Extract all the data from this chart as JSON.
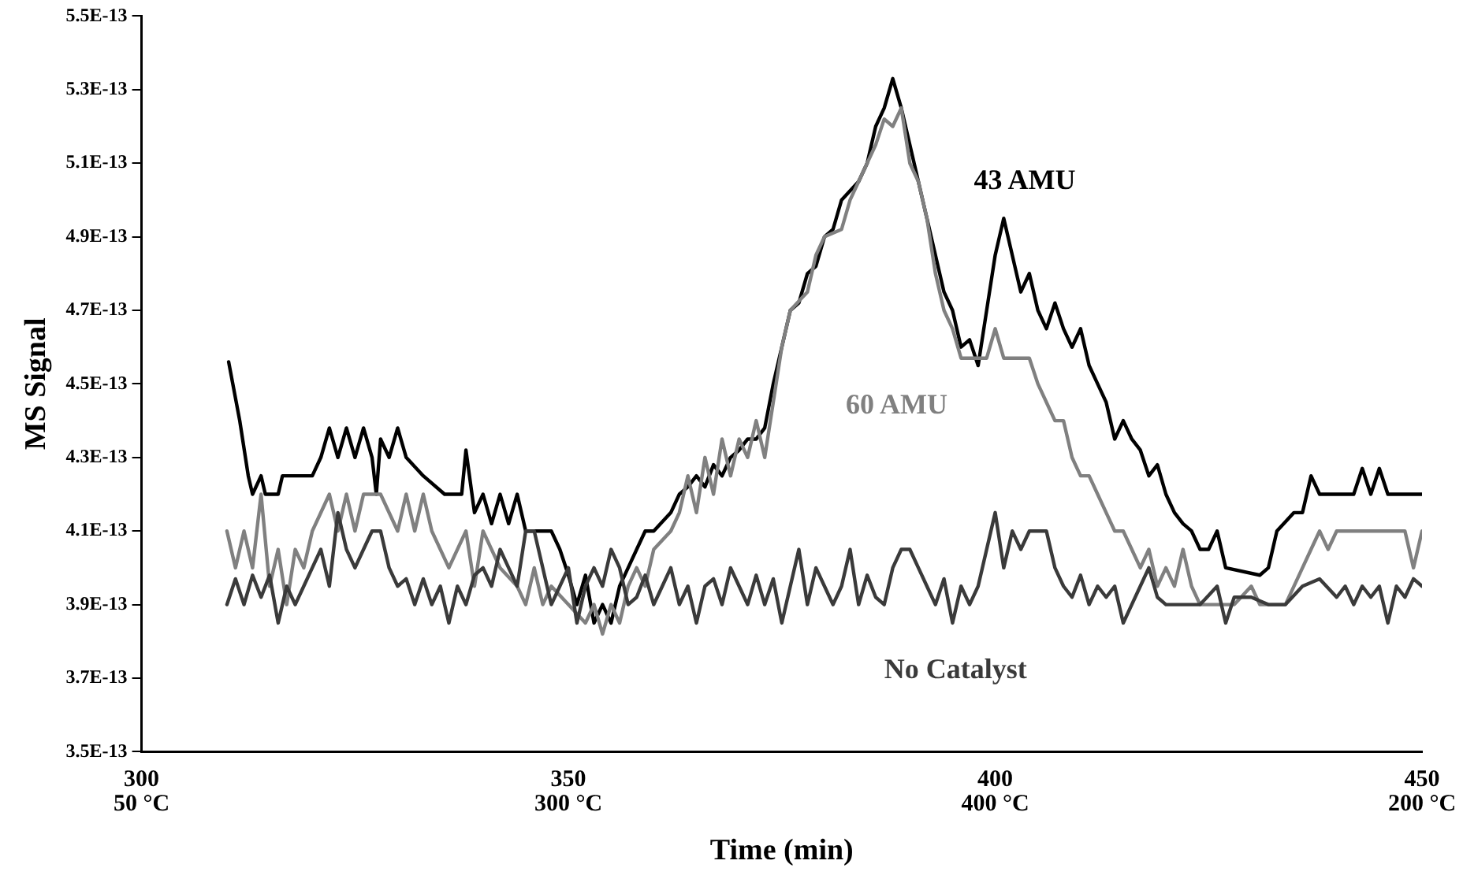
{
  "chart_data": {
    "type": "line",
    "xlabel": "Time (min)",
    "ylabel": "MS Signal",
    "marker": "none",
    "legend": false,
    "grid": false,
    "xlim": [
      300,
      450
    ],
    "xticks": [
      300,
      350,
      400,
      450
    ],
    "annotations": [
      "50 °C",
      "300 °C",
      "400 °C",
      "200 °C"
    ],
    "ylim": [
      3.5e-13,
      5.5e-13
    ],
    "yticks": [
      {
        "value": 3.5e-13,
        "label": "3.5E-13"
      },
      {
        "value": 3.7e-13,
        "label": "3.7E-13"
      },
      {
        "value": 3.9e-13,
        "label": "3.9E-13"
      },
      {
        "value": 4.1e-13,
        "label": "4.1E-13"
      },
      {
        "value": 4.3e-13,
        "label": "4.3E-13"
      },
      {
        "value": 4.5e-13,
        "label": "4.5E-13"
      },
      {
        "value": 4.7e-13,
        "label": "4.7E-13"
      },
      {
        "value": 4.9e-13,
        "label": "4.9E-13"
      },
      {
        "value": 5.1e-13,
        "label": "5.1E-13"
      },
      {
        "value": 5.3e-13,
        "label": "5.3E-13"
      },
      {
        "value": 5.5e-13,
        "label": "5.5E-13"
      }
    ],
    "series": [
      {
        "name": "No Catalyst",
        "color": "#3a3a3a",
        "x": [
          310,
          311,
          312,
          313,
          314,
          315,
          316,
          317,
          318,
          319,
          320,
          321,
          322,
          323,
          324,
          325,
          326,
          327,
          328,
          329,
          330,
          331,
          332,
          333,
          334,
          335,
          336,
          337,
          338,
          339,
          340,
          341,
          342,
          343,
          344,
          345,
          346,
          347,
          348,
          349,
          350,
          351,
          352,
          353,
          354,
          355,
          356,
          357,
          358,
          359,
          360,
          361,
          362,
          363,
          364,
          365,
          366,
          367,
          368,
          369,
          370,
          371,
          372,
          373,
          374,
          375,
          376,
          377,
          378,
          379,
          380,
          381,
          382,
          383,
          384,
          385,
          386,
          387,
          388,
          389,
          390,
          391,
          392,
          393,
          394,
          395,
          396,
          397,
          398,
          399,
          400,
          401,
          402,
          403,
          404,
          405,
          406,
          407,
          408,
          409,
          410,
          411,
          412,
          413,
          414,
          415,
          416,
          417,
          418,
          419,
          420,
          422,
          424,
          426,
          427,
          428,
          430,
          432,
          434,
          436,
          438,
          440,
          441,
          442,
          443,
          444,
          445,
          446,
          447,
          448,
          449,
          450
        ],
        "values": [
          3.9e-13,
          3.97e-13,
          3.9e-13,
          3.98e-13,
          3.92e-13,
          3.98e-13,
          3.85e-13,
          3.95e-13,
          3.9e-13,
          3.95e-13,
          4e-13,
          4.05e-13,
          3.95e-13,
          4.15e-13,
          4.05e-13,
          4e-13,
          4.05e-13,
          4.1e-13,
          4.1e-13,
          4e-13,
          3.95e-13,
          3.97e-13,
          3.9e-13,
          3.97e-13,
          3.9e-13,
          3.95e-13,
          3.85e-13,
          3.95e-13,
          3.9e-13,
          3.98e-13,
          4e-13,
          3.95e-13,
          4.05e-13,
          4e-13,
          3.95e-13,
          4.1e-13,
          4.1e-13,
          4e-13,
          3.9e-13,
          3.95e-13,
          4e-13,
          3.85e-13,
          3.95e-13,
          4e-13,
          3.95e-13,
          4.05e-13,
          4e-13,
          3.9e-13,
          3.92e-13,
          3.98e-13,
          3.9e-13,
          3.95e-13,
          4e-13,
          3.9e-13,
          3.95e-13,
          3.85e-13,
          3.95e-13,
          3.97e-13,
          3.9e-13,
          4e-13,
          3.95e-13,
          3.9e-13,
          3.98e-13,
          3.9e-13,
          3.97e-13,
          3.85e-13,
          3.95e-13,
          4.05e-13,
          3.9e-13,
          4e-13,
          3.95e-13,
          3.9e-13,
          3.95e-13,
          4.05e-13,
          3.9e-13,
          3.98e-13,
          3.92e-13,
          3.9e-13,
          4e-13,
          4.05e-13,
          4.05e-13,
          4e-13,
          3.95e-13,
          3.9e-13,
          3.97e-13,
          3.85e-13,
          3.95e-13,
          3.9e-13,
          3.95e-13,
          4.05e-13,
          4.15e-13,
          4e-13,
          4.1e-13,
          4.05e-13,
          4.1e-13,
          4.1e-13,
          4.1e-13,
          4e-13,
          3.95e-13,
          3.92e-13,
          3.98e-13,
          3.9e-13,
          3.95e-13,
          3.92e-13,
          3.95e-13,
          3.85e-13,
          3.9e-13,
          3.95e-13,
          4e-13,
          3.92e-13,
          3.9e-13,
          3.9e-13,
          3.9e-13,
          3.95e-13,
          3.85e-13,
          3.92e-13,
          3.92e-13,
          3.9e-13,
          3.9e-13,
          3.95e-13,
          3.97e-13,
          3.92e-13,
          3.95e-13,
          3.9e-13,
          3.95e-13,
          3.92e-13,
          3.95e-13,
          3.85e-13,
          3.95e-13,
          3.92e-13,
          3.97e-13,
          3.95e-13
        ]
      },
      {
        "name": "60 AMU",
        "color": "#808080",
        "x": [
          310,
          311,
          312,
          313,
          314,
          315,
          316,
          317,
          318,
          319,
          320,
          322,
          323,
          324,
          325,
          326,
          328,
          330,
          331,
          332,
          333,
          334,
          336,
          338,
          339,
          340,
          342,
          344,
          345,
          346,
          347,
          348,
          350,
          352,
          353,
          354,
          355,
          356,
          357,
          358,
          359,
          360,
          362,
          363,
          364,
          365,
          366,
          367,
          368,
          369,
          370,
          371,
          372,
          373,
          374,
          375,
          376,
          378,
          379,
          380,
          382,
          383,
          384,
          386,
          387,
          388,
          389,
          390,
          391,
          392,
          393,
          394,
          395,
          396,
          399,
          400,
          401,
          404,
          405,
          406,
          407,
          408,
          409,
          410,
          411,
          412,
          413,
          414,
          415,
          416,
          417,
          418,
          419,
          420,
          421,
          422,
          423,
          424,
          428,
          430,
          431,
          434,
          436,
          437,
          438,
          439,
          440,
          448,
          449,
          450
        ],
        "values": [
          4.1e-13,
          4e-13,
          4.1e-13,
          4e-13,
          4.2e-13,
          3.95e-13,
          4.05e-13,
          3.9e-13,
          4.05e-13,
          4e-13,
          4.1e-13,
          4.2e-13,
          4.1e-13,
          4.2e-13,
          4.1e-13,
          4.2e-13,
          4.2e-13,
          4.1e-13,
          4.2e-13,
          4.1e-13,
          4.2e-13,
          4.1e-13,
          4e-13,
          4.1e-13,
          3.95e-13,
          4.1e-13,
          4e-13,
          3.95e-13,
          3.9e-13,
          4e-13,
          3.9e-13,
          3.95e-13,
          3.9e-13,
          3.85e-13,
          3.9e-13,
          3.82e-13,
          3.9e-13,
          3.85e-13,
          3.95e-13,
          4e-13,
          3.95e-13,
          4.05e-13,
          4.1e-13,
          4.15e-13,
          4.25e-13,
          4.15e-13,
          4.3e-13,
          4.2e-13,
          4.35e-13,
          4.25e-13,
          4.35e-13,
          4.3e-13,
          4.4e-13,
          4.3e-13,
          4.45e-13,
          4.6e-13,
          4.7e-13,
          4.75e-13,
          4.85e-13,
          4.9e-13,
          4.92e-13,
          5e-13,
          5.05e-13,
          5.15e-13,
          5.22e-13,
          5.2e-13,
          5.25e-13,
          5.1e-13,
          5.05e-13,
          4.95e-13,
          4.8e-13,
          4.7e-13,
          4.65e-13,
          4.57e-13,
          4.57e-13,
          4.65e-13,
          4.57e-13,
          4.57e-13,
          4.5e-13,
          4.45e-13,
          4.4e-13,
          4.4e-13,
          4.3e-13,
          4.25e-13,
          4.25e-13,
          4.2e-13,
          4.15e-13,
          4.1e-13,
          4.1e-13,
          4.05e-13,
          4e-13,
          4.05e-13,
          3.95e-13,
          4e-13,
          3.95e-13,
          4.05e-13,
          3.95e-13,
          3.9e-13,
          3.9e-13,
          3.95e-13,
          3.9e-13,
          3.9e-13,
          4e-13,
          4.05e-13,
          4.1e-13,
          4.05e-13,
          4.1e-13,
          4.1e-13,
          4e-13,
          4.1e-13
        ]
      },
      {
        "name": "43 AMU",
        "color": "#000000",
        "x": [
          310.2,
          311.5,
          312.5,
          313,
          314,
          314.5,
          316,
          316.5,
          320,
          321,
          322,
          323,
          324,
          325,
          326,
          327,
          327.5,
          328,
          329,
          330,
          331,
          333,
          335.5,
          337.5,
          338,
          339,
          340,
          341,
          342,
          343,
          344,
          345,
          348,
          349,
          350,
          351,
          352,
          353,
          354,
          355,
          356,
          357,
          358,
          359,
          360,
          362,
          363,
          364,
          365,
          366,
          367,
          368,
          369,
          370,
          371,
          372,
          373,
          374,
          375,
          376,
          377,
          378,
          379,
          380,
          381,
          382,
          384,
          385,
          386,
          387,
          388,
          389,
          390,
          391,
          392,
          393,
          394,
          395,
          396,
          397,
          398,
          399,
          400,
          401,
          402,
          403,
          404,
          405,
          406,
          407,
          408,
          409,
          410,
          411,
          412,
          413,
          414,
          415,
          416,
          417,
          418,
          419,
          420,
          421,
          422,
          423,
          424,
          425,
          426,
          427,
          431,
          432,
          433,
          435,
          436,
          437,
          438,
          442,
          443,
          444,
          445,
          446,
          447,
          450
        ],
        "values": [
          4.56e-13,
          4.4e-13,
          4.25e-13,
          4.2e-13,
          4.25e-13,
          4.2e-13,
          4.2e-13,
          4.25e-13,
          4.25e-13,
          4.3e-13,
          4.38e-13,
          4.3e-13,
          4.38e-13,
          4.3e-13,
          4.38e-13,
          4.3e-13,
          4.2e-13,
          4.35e-13,
          4.3e-13,
          4.38e-13,
          4.3e-13,
          4.25e-13,
          4.2e-13,
          4.2e-13,
          4.32e-13,
          4.15e-13,
          4.2e-13,
          4.12e-13,
          4.2e-13,
          4.12e-13,
          4.2e-13,
          4.1e-13,
          4.1e-13,
          4.05e-13,
          3.98e-13,
          3.9e-13,
          3.98e-13,
          3.85e-13,
          3.9e-13,
          3.85e-13,
          3.95e-13,
          4e-13,
          4.05e-13,
          4.1e-13,
          4.1e-13,
          4.15e-13,
          4.2e-13,
          4.22e-13,
          4.25e-13,
          4.22e-13,
          4.28e-13,
          4.25e-13,
          4.3e-13,
          4.32e-13,
          4.35e-13,
          4.35e-13,
          4.38e-13,
          4.5e-13,
          4.6e-13,
          4.7e-13,
          4.72e-13,
          4.8e-13,
          4.82e-13,
          4.9e-13,
          4.92e-13,
          5e-13,
          5.05e-13,
          5.1e-13,
          5.2e-13,
          5.25e-13,
          5.33e-13,
          5.25e-13,
          5.15e-13,
          5.05e-13,
          4.95e-13,
          4.85e-13,
          4.75e-13,
          4.7e-13,
          4.6e-13,
          4.62e-13,
          4.55e-13,
          4.7e-13,
          4.85e-13,
          4.95e-13,
          4.85e-13,
          4.75e-13,
          4.8e-13,
          4.7e-13,
          4.65e-13,
          4.72e-13,
          4.65e-13,
          4.6e-13,
          4.65e-13,
          4.55e-13,
          4.5e-13,
          4.45e-13,
          4.35e-13,
          4.4e-13,
          4.35e-13,
          4.32e-13,
          4.25e-13,
          4.28e-13,
          4.2e-13,
          4.15e-13,
          4.12e-13,
          4.1e-13,
          4.05e-13,
          4.05e-13,
          4.1e-13,
          4e-13,
          3.98e-13,
          4e-13,
          4.1e-13,
          4.15e-13,
          4.15e-13,
          4.25e-13,
          4.2e-13,
          4.2e-13,
          4.27e-13,
          4.2e-13,
          4.27e-13,
          4.2e-13,
          4.2e-13,
          4.2e-13
        ]
      }
    ]
  }
}
